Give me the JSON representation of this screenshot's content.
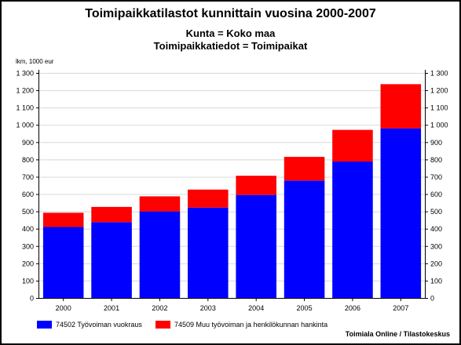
{
  "colors": {
    "series1": "#0000ff",
    "series2": "#ff0000",
    "grid": "#d8d8d8",
    "axis": "#000000"
  },
  "header": {
    "title": "Toimipaikkatilastot kunnittain vuosina 2000-2007",
    "subtitle1": "Kunta = Koko maa",
    "subtitle2": "Toimipaikkatiedot = Toimipaikat"
  },
  "footer": {
    "source": "Toimiala Online / Tilastokeskus"
  },
  "chart_data": {
    "type": "bar",
    "stacked": true,
    "ylabel": "lkm, 1000 eur",
    "categories": [
      "2000",
      "2001",
      "2002",
      "2003",
      "2004",
      "2005",
      "2006",
      "2007"
    ],
    "series": [
      {
        "name": "74502 Työvoiman vuokraus",
        "color": "#0000ff",
        "values": [
          410,
          438,
          500,
          522,
          595,
          678,
          788,
          980
        ]
      },
      {
        "name": "74509 Muu työvoiman ja henkilökunnan hankinta",
        "color": "#ff0000",
        "values": [
          82,
          88,
          87,
          104,
          111,
          137,
          183,
          255
        ]
      }
    ],
    "ylim": [
      0,
      1300
    ],
    "yticks": [
      0,
      100,
      200,
      300,
      400,
      500,
      600,
      700,
      800,
      900,
      1000,
      1100,
      1200,
      1300
    ],
    "ytick_labels": [
      "0",
      "100",
      "200",
      "300",
      "400",
      "500",
      "600",
      "700",
      "800",
      "900",
      "1 000",
      "1 100",
      "1 200",
      "1 300"
    ],
    "grid": true,
    "legend_position": "bottom"
  }
}
